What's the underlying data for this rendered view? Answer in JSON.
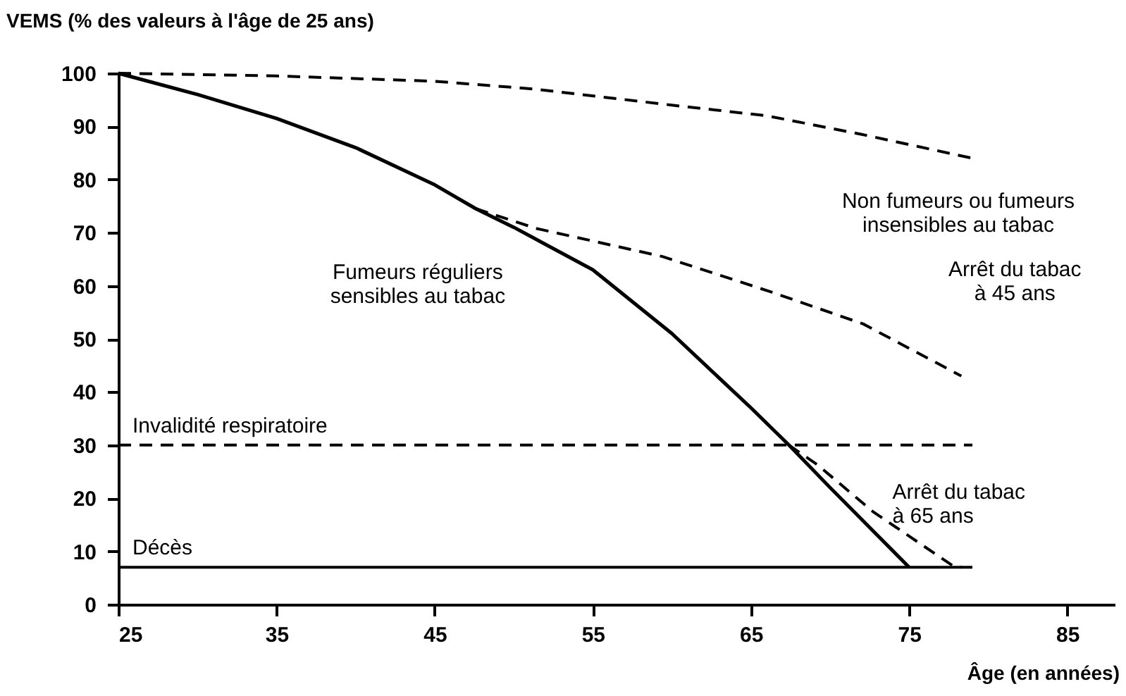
{
  "chart_data": {
    "type": "line",
    "ylabel": "VEMS (% des valeurs à l'âge de 25 ans)",
    "xlabel": "Âge (en années)",
    "xlim": [
      25,
      88
    ],
    "ylim": [
      0,
      100
    ],
    "xticks": [
      25,
      35,
      45,
      55,
      65,
      75,
      85
    ],
    "yticks": [
      0,
      10,
      20,
      30,
      40,
      50,
      60,
      70,
      80,
      90,
      100
    ],
    "grid": false,
    "marker": "none",
    "series": [
      {
        "name": "Fumeurs réguliers\nsensibles au tabac",
        "color": "#000000",
        "line_style": "solid",
        "x": [
          25,
          30,
          35,
          40,
          45,
          47.6,
          50,
          55,
          60,
          65,
          67.4,
          70,
          75
        ],
        "values": [
          100,
          96,
          91.5,
          86,
          79,
          74.5,
          71,
          63,
          51,
          37,
          30,
          22,
          7
        ]
      },
      {
        "name": "Non fumeurs ou fumeurs\ninsensibles au tabac",
        "color": "#000000",
        "line_style": "dashed",
        "x": [
          25,
          35,
          45,
          51.4,
          60,
          66,
          72,
          79
        ],
        "values": [
          100,
          99.5,
          98.5,
          97,
          94,
          92,
          88.5,
          84
        ]
      },
      {
        "name": "Arrêt du tabac\nà 45 ans",
        "color": "#000000",
        "line_style": "dashed",
        "x": [
          47.6,
          51.4,
          59.4,
          66.2,
          72.1,
          78.3
        ],
        "values": [
          74.5,
          70.8,
          65.5,
          58.9,
          52.8,
          43
        ]
      },
      {
        "name": "Arrêt du tabac\nà 65 ans",
        "color": "#000000",
        "line_style": "dashed",
        "x": [
          67.4,
          69.2,
          72.7,
          77.8,
          78.3
        ],
        "values": [
          30,
          26.3,
          17.5,
          7.2,
          7
        ]
      }
    ],
    "ref_lines": [
      {
        "axis": "y",
        "value": 30,
        "label": "Invalidité respiratoire",
        "color": "#000000",
        "line_style": "dashed"
      },
      {
        "axis": "y",
        "value": 7,
        "label": "Décès",
        "color": "#000000",
        "line_style": "solid"
      }
    ]
  }
}
